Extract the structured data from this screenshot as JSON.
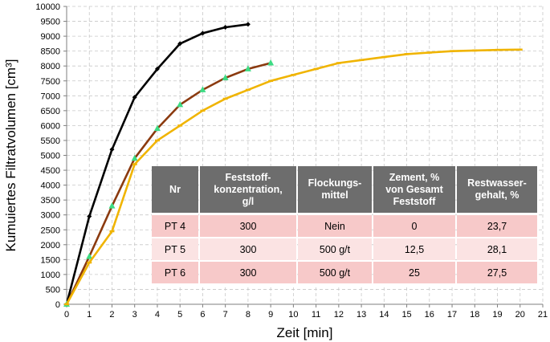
{
  "chart_data": {
    "type": "line",
    "title": "",
    "xlabel": "Zeit [min]",
    "ylabel": "Kumuiertes Filtratvolumen [cm³]",
    "xlim": [
      0,
      21
    ],
    "ylim": [
      0,
      10000
    ],
    "x_ticks": [
      "0",
      "1",
      "2",
      "3",
      "4",
      "5",
      "6",
      "7",
      "8",
      "9",
      "10",
      "11",
      "12",
      "13",
      "14",
      "15",
      "16",
      "17",
      "18",
      "19",
      "20",
      "21"
    ],
    "y_ticks": [
      "0",
      "500",
      "1000",
      "1500",
      "2000",
      "2500",
      "3000",
      "3500",
      "4000",
      "4500",
      "5000",
      "5500",
      "6000",
      "6500",
      "7000",
      "7500",
      "8000",
      "8500",
      "9000",
      "9500",
      "10000"
    ],
    "grid": true,
    "series": [
      {
        "color": "#000000",
        "marker": "diamond",
        "marker_color": "#000000",
        "x": [
          0,
          1,
          2,
          3,
          4,
          5,
          6,
          7,
          8
        ],
        "y": [
          0,
          2950,
          5200,
          6950,
          7900,
          8750,
          9100,
          9300,
          9400
        ]
      },
      {
        "color": "#8b3a0f",
        "marker": "triangle",
        "marker_color": "#3ddc84",
        "x": [
          0,
          1,
          2,
          3,
          4,
          5,
          6,
          7,
          8,
          9
        ],
        "y": [
          0,
          1600,
          3300,
          4900,
          5900,
          6700,
          7200,
          7600,
          7900,
          8100
        ]
      },
      {
        "color": "#f0b400",
        "marker": "dash",
        "marker_color": "#f0b400",
        "x": [
          0,
          1,
          2,
          3,
          4,
          5,
          6,
          7,
          8,
          9,
          10,
          11,
          12,
          13,
          14,
          15,
          16,
          17,
          18,
          19,
          20
        ],
        "y": [
          0,
          1400,
          2450,
          4700,
          5500,
          6000,
          6500,
          6900,
          7200,
          7500,
          7700,
          7900,
          8100,
          8200,
          8300,
          8400,
          8450,
          8500,
          8520,
          8540,
          8550
        ]
      }
    ]
  },
  "table": {
    "headers": [
      "Nr",
      "Feststoff-\nkonzentration,\ng/l",
      "Flockungs-\nmittel",
      "Zement, %\nvon Gesamt\nFeststoff",
      "Restwasser-\ngehalt, %"
    ],
    "rows": [
      [
        "PT 4",
        "300",
        "Nein",
        "0",
        "23,7"
      ],
      [
        "PT 5",
        "300",
        "500 g/t",
        "12,5",
        "28,1"
      ],
      [
        "PT 6",
        "300",
        "500 g/t",
        "25",
        "27,5"
      ]
    ]
  }
}
